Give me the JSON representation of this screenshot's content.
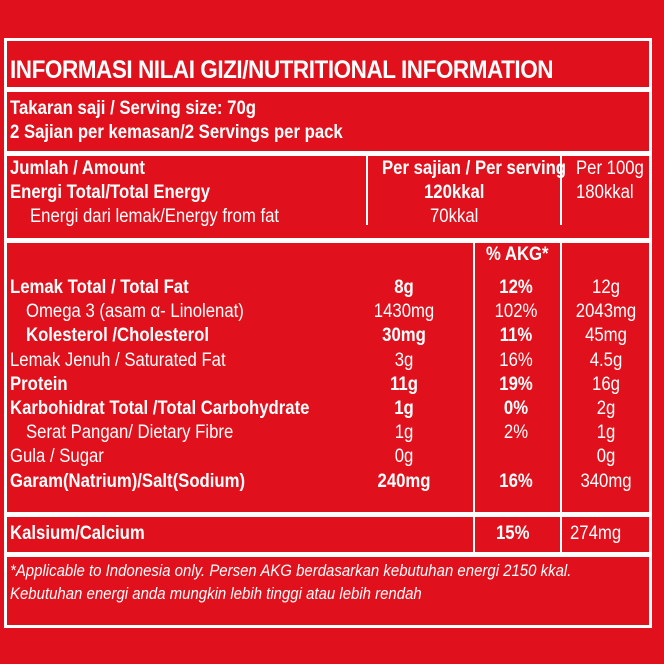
{
  "title": "INFORMASI NILAI GIZI/NUTRITIONAL INFORMATION",
  "serving": {
    "size": "Takaran saji / Serving size: 70g",
    "per_pack": "2 Sajian per kemasan/2 Servings per pack"
  },
  "header": {
    "amount": "Jumlah / Amount",
    "per_serving": "Per sajian / Per serving",
    "per_100g": "Per 100g"
  },
  "energy": {
    "total_label": "Energi Total/Total Energy",
    "total_serving": "120kkal",
    "total_100g": "180kkal",
    "fat_label": "Energi dari lemak/Energy from fat",
    "fat_serving": "70kkal"
  },
  "akg_header": "% AKG*",
  "rows": [
    {
      "label": "Lemak Total / Total Fat",
      "amount": "8g",
      "akg": "12%",
      "per100": "12g",
      "bold": true,
      "indent": false
    },
    {
      "label": "Omega 3 (asam α- Linolenat)",
      "amount": "1430mg",
      "akg": "102%",
      "per100": "2043mg",
      "bold": false,
      "indent": true
    },
    {
      "label": "Kolesterol /Cholesterol",
      "amount": "30mg",
      "akg": "11%",
      "per100": "45mg",
      "bold": true,
      "indent": true
    },
    {
      "label": "Lemak Jenuh / Saturated Fat",
      "amount": "3g",
      "akg": "16%",
      "per100": "4.5g",
      "bold": false,
      "indent": false
    },
    {
      "label": "Protein",
      "amount": "11g",
      "akg": "19%",
      "per100": "16g",
      "bold": true,
      "indent": false
    },
    {
      "label": "Karbohidrat Total /Total Carbohydrate",
      "amount": "1g",
      "akg": "0%",
      "per100": "2g",
      "bold": true,
      "indent": false
    },
    {
      "label": "Serat Pangan/ Dietary Fibre",
      "amount": "1g",
      "akg": "2%",
      "per100": "1g",
      "bold": false,
      "indent": true
    },
    {
      "label": "Gula / Sugar",
      "amount": "0g",
      "akg": "",
      "per100": "0g",
      "bold": false,
      "indent": false
    },
    {
      "label": "Garam(Natrium)/Salt(Sodium)",
      "amount": "240mg",
      "akg": "16%",
      "per100": "340mg",
      "bold": true,
      "indent": false
    }
  ],
  "calcium": {
    "label": "Kalsium/Calcium",
    "akg": "15%",
    "per100": "274mg"
  },
  "footnote": {
    "line1": "*Applicable to Indonesia only. Persen AKG berdasarkan kebutuhan energi 2150 kkal.",
    "line2": "Kebutuhan energi anda mungkin lebih tinggi atau lebih rendah"
  },
  "colors": {
    "background": "#e0111c",
    "foreground": "#ffffff"
  }
}
